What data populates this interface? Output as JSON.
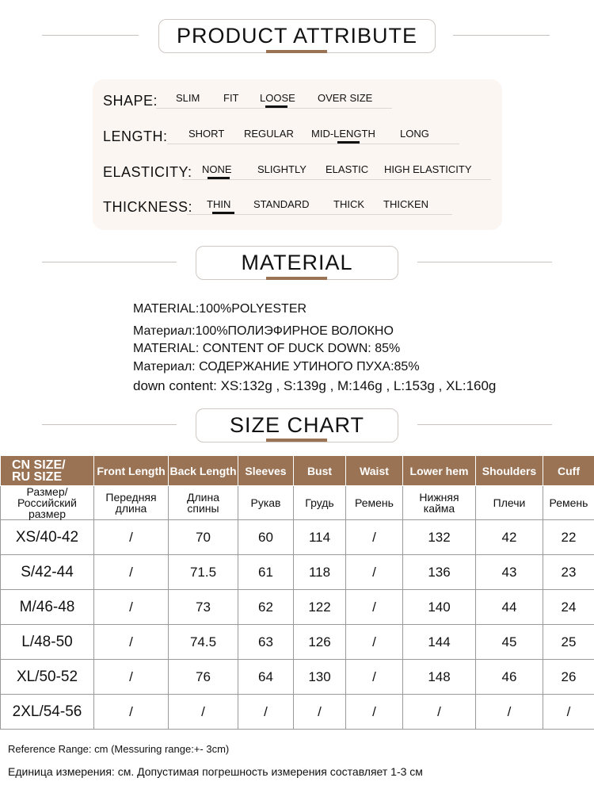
{
  "colors": {
    "accent": "#9a7355",
    "panel": "#fbf6f2"
  },
  "sections": {
    "attribute": "PRODUCT ATTRIBUTE",
    "material": "MATERIAL",
    "size_chart": "SIZE CHART"
  },
  "attributes": [
    {
      "label": "SHAPE:",
      "options": [
        "SLIM",
        "FIT",
        "LOOSE",
        "OVER SIZE"
      ],
      "selected": "LOOSE"
    },
    {
      "label": "LENGTH:",
      "options": [
        "SHORT",
        "REGULAR",
        "MID-LENGTH",
        "LONG"
      ],
      "selected": "MID-LENGTH"
    },
    {
      "label": "ELASTICITY:",
      "options": [
        "NONE",
        "SLIGHTLY",
        "ELASTIC",
        "HIGH ELASTICITY"
      ],
      "selected": "NONE"
    },
    {
      "label": "THICKNESS:",
      "options": [
        "THIN",
        "STANDARD",
        "THICK",
        "THICKEN"
      ],
      "selected": "THIN"
    }
  ],
  "material_lines": [
    "MATERIAL:100%POLYESTER",
    "Материал:100%ПОЛИЭФИРНОЕ ВОЛОКНО",
    "MATERIAL: CONTENT OF DUCK DOWN: 85%",
    "Материал: СОДЕРЖАНИЕ УТИНОГО ПУХА:85%",
    "down content:  XS:132g , S:139g , M:146g , L:153g , XL:160g"
  ],
  "size_table": {
    "headers_en": [
      "CN SIZE/\nRU SIZE",
      "Front Length",
      "Back Length",
      "Sleeves",
      "Bust",
      "Waist",
      "Lower hem",
      "Shoulders",
      "Cuff"
    ],
    "headers_ru": [
      "Размер/\nРоссийский\nразмер",
      "Передняя\nдлина",
      "Длина\nспины",
      "Рукав",
      "Грудь",
      "Ремень",
      "Нижняя\nкайма",
      "Плечи",
      "Ремень"
    ],
    "rows": [
      [
        "XS/40-42",
        "/",
        "70",
        "60",
        "114",
        "/",
        "132",
        "42",
        "22"
      ],
      [
        "S/42-44",
        "/",
        "71.5",
        "61",
        "118",
        "/",
        "136",
        "43",
        "23"
      ],
      [
        "M/46-48",
        "/",
        "73",
        "62",
        "122",
        "/",
        "140",
        "44",
        "24"
      ],
      [
        "L/48-50",
        "/",
        "74.5",
        "63",
        "126",
        "/",
        "144",
        "45",
        "25"
      ],
      [
        "XL/50-52",
        "/",
        "76",
        "64",
        "130",
        "/",
        "148",
        "46",
        "26"
      ],
      [
        "2XL/54-56",
        "/",
        "/",
        "/",
        "/",
        "/",
        "/",
        "/",
        "/"
      ]
    ]
  },
  "notes": [
    "Reference Range: cm (Messuring range:+- 3cm)",
    "Единица измерения: см. Допустимая погрешность измерения составляет 1-3 см"
  ]
}
